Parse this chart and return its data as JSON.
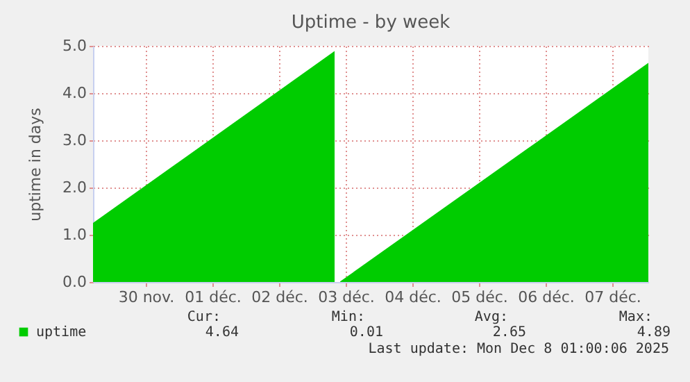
{
  "chart_data": {
    "type": "area",
    "title": "Uptime - by week",
    "ylabel": "uptime in days",
    "x": [
      "2025-11-29T05:00",
      "2025-12-02T20:00",
      "2025-12-02T21:00",
      "2025-12-02T22:00",
      "2025-12-07T13:00"
    ],
    "series": [
      {
        "name": "uptime",
        "color": "#00cc00",
        "values": [
          1.25,
          4.89,
          null,
          0.01,
          4.64
        ]
      }
    ],
    "xlim": [
      "2025-11-29T05:00",
      "2025-12-07T13:00"
    ],
    "xticks": [
      {
        "value": "2025-11-30",
        "label": "30 nov."
      },
      {
        "value": "2025-12-01",
        "label": "01 déc."
      },
      {
        "value": "2025-12-02",
        "label": "02 déc."
      },
      {
        "value": "2025-12-03",
        "label": "03 déc."
      },
      {
        "value": "2025-12-04",
        "label": "04 déc."
      },
      {
        "value": "2025-12-05",
        "label": "05 déc."
      },
      {
        "value": "2025-12-06",
        "label": "06 déc."
      },
      {
        "value": "2025-12-07",
        "label": "07 déc."
      }
    ],
    "ylim": [
      0,
      5
    ],
    "yticks": [
      {
        "value": 0,
        "label": "0.0"
      },
      {
        "value": 1,
        "label": "1.0"
      },
      {
        "value": 2,
        "label": "2.0"
      },
      {
        "value": 3,
        "label": "3.0"
      },
      {
        "value": 4,
        "label": "4.0"
      },
      {
        "value": 5,
        "label": "5.0"
      }
    ],
    "grid": true,
    "legend": "bottom left",
    "annotations": [
      "Cur:",
      "Min:",
      "Avg:",
      "Max:",
      "4.64",
      "0.01",
      "2.65",
      "4.89",
      "Last update: Mon Dec  8 01:00:06 2025"
    ]
  }
}
